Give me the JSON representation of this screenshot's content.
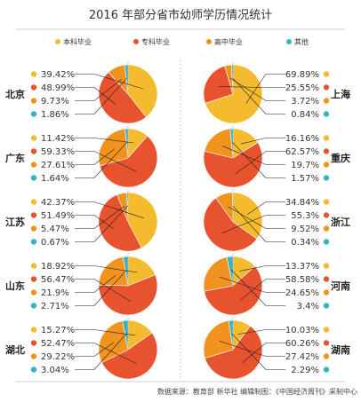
{
  "title": "2016 年部分省市幼师学历情况统计",
  "legend": [
    {
      "label": "本科毕业",
      "color": "#f5bb2e"
    },
    {
      "label": "专科毕业",
      "color": "#e8532f"
    },
    {
      "label": "高中毕业",
      "color": "#f29320"
    },
    {
      "label": "其他",
      "color": "#35b3c5"
    }
  ],
  "footer": "数据来源：教育部 新华社    编辑制图：《中国经济周刊》采制中心",
  "chart_data": [
    {
      "type": "pie",
      "title": "北京",
      "categories": [
        "本科毕业",
        "专科毕业",
        "高中毕业",
        "其他"
      ],
      "values": [
        39.42,
        48.99,
        9.73,
        1.86
      ],
      "labels": [
        "39.42%",
        "48.99%",
        "9.73%",
        "1.86%"
      ]
    },
    {
      "type": "pie",
      "title": "广东",
      "categories": [
        "本科毕业",
        "专科毕业",
        "高中毕业",
        "其他"
      ],
      "values": [
        11.42,
        59.33,
        27.61,
        1.64
      ],
      "labels": [
        "11.42%",
        "59.33%",
        "27.61%",
        "1.64%"
      ]
    },
    {
      "type": "pie",
      "title": "江苏",
      "categories": [
        "本科毕业",
        "专科毕业",
        "高中毕业",
        "其他"
      ],
      "values": [
        42.37,
        51.49,
        5.47,
        0.67
      ],
      "labels": [
        "42.37%",
        "51.49%",
        "5.47%",
        "0.67%"
      ]
    },
    {
      "type": "pie",
      "title": "山东",
      "categories": [
        "本科毕业",
        "专科毕业",
        "高中毕业",
        "其他"
      ],
      "values": [
        18.92,
        56.47,
        21.9,
        2.71
      ],
      "labels": [
        "18.92%",
        "56.47%",
        "21.9%",
        "2.71%"
      ]
    },
    {
      "type": "pie",
      "title": "湖北",
      "categories": [
        "本科毕业",
        "专科毕业",
        "高中毕业",
        "其他"
      ],
      "values": [
        15.27,
        52.47,
        29.22,
        3.04
      ],
      "labels": [
        "15.27%",
        "52.47%",
        "29.22%",
        "3.04%"
      ]
    },
    {
      "type": "pie",
      "title": "上海",
      "categories": [
        "本科毕业",
        "专科毕业",
        "高中毕业",
        "其他"
      ],
      "values": [
        69.89,
        25.55,
        3.72,
        0.84
      ],
      "labels": [
        "69.89%",
        "25.55%",
        "3.72%",
        "0.84%"
      ]
    },
    {
      "type": "pie",
      "title": "重庆",
      "categories": [
        "本科毕业",
        "专科毕业",
        "高中毕业",
        "其他"
      ],
      "values": [
        16.16,
        62.57,
        19.7,
        1.57
      ],
      "labels": [
        "16.16%",
        "62.57%",
        "19.7%",
        "1.57%"
      ]
    },
    {
      "type": "pie",
      "title": "浙江",
      "categories": [
        "本科毕业",
        "专科毕业",
        "高中毕业",
        "其他"
      ],
      "values": [
        34.84,
        55.3,
        9.52,
        0.34
      ],
      "labels": [
        "34.84%",
        "55.3%",
        "9.52%",
        "0.34%"
      ]
    },
    {
      "type": "pie",
      "title": "河南",
      "categories": [
        "本科毕业",
        "专科毕业",
        "高中毕业",
        "其他"
      ],
      "values": [
        13.37,
        58.58,
        24.65,
        3.4
      ],
      "labels": [
        "13.37%",
        "58.58%",
        "24.65%",
        "3.4%"
      ]
    },
    {
      "type": "pie",
      "title": "湖南",
      "categories": [
        "本科毕业",
        "专科毕业",
        "高中毕业",
        "其他"
      ],
      "values": [
        10.03,
        60.26,
        27.42,
        2.29
      ],
      "labels": [
        "10.03%",
        "60.26%",
        "27.42%",
        "2.29%"
      ]
    }
  ]
}
